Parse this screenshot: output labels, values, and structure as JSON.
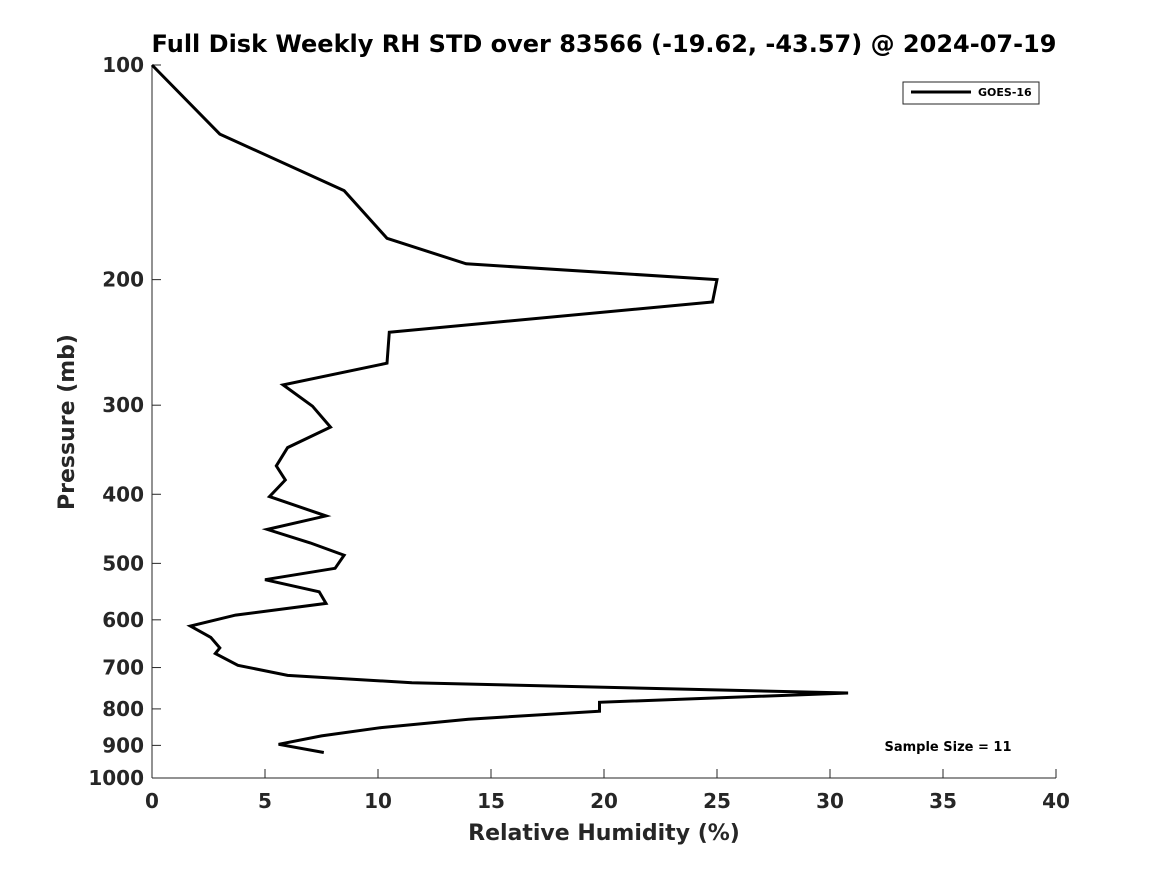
{
  "chart_data": {
    "type": "line",
    "title": "Full Disk Weekly RH STD over 83566 (-19.62, -43.57) @ 2024-07-19",
    "xlabel": "Relative Humidity (%)",
    "ylabel": "Pressure (mb)",
    "xlim": [
      0,
      40
    ],
    "ylim": [
      1000,
      100
    ],
    "y_scale": "log",
    "x_ticks": [
      "0",
      "5",
      "10",
      "15",
      "20",
      "25",
      "30",
      "35",
      "40"
    ],
    "y_ticks": [
      "100",
      "200",
      "300",
      "400",
      "500",
      "600",
      "700",
      "800",
      "900",
      "1000"
    ],
    "grid": false,
    "legend_position": "top-right",
    "annotation": "Sample Size = 11",
    "series": [
      {
        "name": "GOES-16",
        "color": "#000000",
        "points": [
          [
            0.0,
            100
          ],
          [
            3.0,
            125
          ],
          [
            8.5,
            150
          ],
          [
            10.4,
            175
          ],
          [
            13.9,
            190
          ],
          [
            25.0,
            200
          ],
          [
            24.8,
            215
          ],
          [
            10.5,
            237
          ],
          [
            10.4,
            262
          ],
          [
            5.8,
            281
          ],
          [
            7.1,
            301
          ],
          [
            7.9,
            322
          ],
          [
            6.0,
            344
          ],
          [
            5.5,
            365
          ],
          [
            5.9,
            382
          ],
          [
            5.2,
            403
          ],
          [
            7.7,
            429
          ],
          [
            5.1,
            448
          ],
          [
            7.0,
            468
          ],
          [
            8.5,
            487
          ],
          [
            8.1,
            508
          ],
          [
            5.0,
            527
          ],
          [
            7.4,
            548
          ],
          [
            7.7,
            569
          ],
          [
            3.7,
            591
          ],
          [
            1.7,
            612
          ],
          [
            2.6,
            635
          ],
          [
            3.0,
            657
          ],
          [
            2.8,
            669
          ],
          [
            3.8,
            695
          ],
          [
            6.0,
            718
          ],
          [
            11.5,
            735
          ],
          [
            30.8,
            760
          ],
          [
            19.8,
            783
          ],
          [
            19.8,
            806
          ],
          [
            14.0,
            827
          ],
          [
            10.1,
            850
          ],
          [
            7.5,
            873
          ],
          [
            5.6,
            897
          ],
          [
            7.6,
            921
          ]
        ]
      }
    ]
  }
}
